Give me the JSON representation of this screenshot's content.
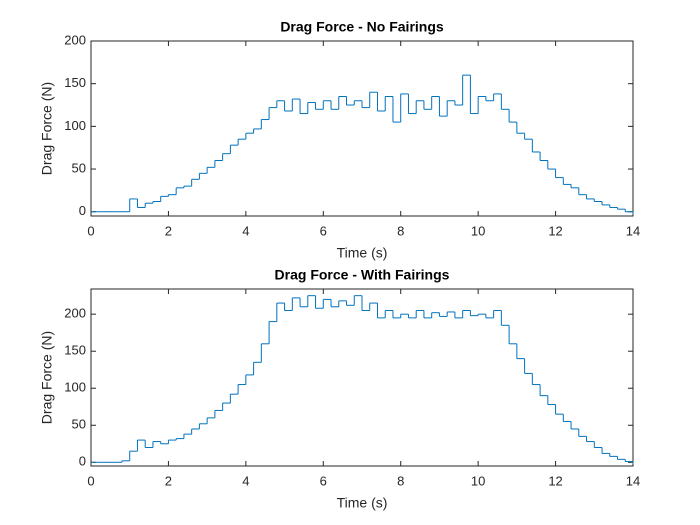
{
  "chart_data": [
    {
      "type": "stairs",
      "title": "Drag Force - No Fairings",
      "xlabel": "Time (s)",
      "ylabel": "Drag Force (N)",
      "color": "#0072BD",
      "x": [
        0,
        0.2,
        0.4,
        0.6,
        0.8,
        1,
        1.2,
        1.4,
        1.6,
        1.8,
        2,
        2.2,
        2.4,
        2.6,
        2.8,
        3,
        3.2,
        3.4,
        3.6,
        3.8,
        4,
        4.2,
        4.4,
        4.6,
        4.8,
        5,
        5.2,
        5.4,
        5.6,
        5.8,
        6,
        6.2,
        6.4,
        6.6,
        6.8,
        7,
        7.2,
        7.4,
        7.6,
        7.8,
        8,
        8.2,
        8.4,
        8.6,
        8.8,
        9,
        9.2,
        9.4,
        9.6,
        9.8,
        10,
        10.2,
        10.4,
        10.6,
        10.8,
        11,
        11.2,
        11.4,
        11.6,
        11.8,
        12,
        12.2,
        12.4,
        12.6,
        12.8,
        13,
        13.2,
        13.4,
        13.6,
        13.8,
        14
      ],
      "values": [
        0,
        0,
        0,
        0,
        0,
        15,
        5,
        10,
        12,
        18,
        20,
        28,
        30,
        38,
        45,
        52,
        60,
        68,
        78,
        85,
        92,
        97,
        108,
        122,
        130,
        118,
        132,
        115,
        128,
        120,
        130,
        120,
        135,
        125,
        130,
        122,
        140,
        118,
        135,
        105,
        138,
        115,
        130,
        120,
        135,
        112,
        130,
        125,
        160,
        115,
        135,
        130,
        138,
        120,
        105,
        92,
        85,
        70,
        60,
        50,
        40,
        32,
        28,
        20,
        15,
        12,
        8,
        5,
        3,
        0,
        -3
      ],
      "xlim": [
        0,
        14
      ],
      "xticks": [
        0,
        2,
        4,
        6,
        8,
        10,
        12,
        14
      ],
      "ylim": [
        -5,
        200
      ],
      "yticks": [
        0,
        50,
        100,
        150,
        200
      ]
    },
    {
      "type": "stairs",
      "title": "Drag Force - With Fairings",
      "xlabel": "Time (s)",
      "ylabel": "Drag Force (N)",
      "color": "#0072BD",
      "x": [
        0,
        0.2,
        0.4,
        0.6,
        0.8,
        1,
        1.2,
        1.4,
        1.6,
        1.8,
        2,
        2.2,
        2.4,
        2.6,
        2.8,
        3,
        3.2,
        3.4,
        3.6,
        3.8,
        4,
        4.2,
        4.4,
        4.6,
        4.8,
        5,
        5.2,
        5.4,
        5.6,
        5.8,
        6,
        6.2,
        6.4,
        6.6,
        6.8,
        7,
        7.2,
        7.4,
        7.6,
        7.8,
        8,
        8.2,
        8.4,
        8.6,
        8.8,
        9,
        9.2,
        9.4,
        9.6,
        9.8,
        10,
        10.2,
        10.4,
        10.6,
        10.8,
        11,
        11.2,
        11.4,
        11.6,
        11.8,
        12,
        12.2,
        12.4,
        12.6,
        12.8,
        13,
        13.2,
        13.4,
        13.6,
        13.8,
        14
      ],
      "values": [
        0,
        0,
        0,
        0,
        2,
        15,
        30,
        20,
        28,
        25,
        30,
        32,
        38,
        45,
        52,
        60,
        70,
        80,
        92,
        105,
        118,
        135,
        160,
        190,
        215,
        205,
        222,
        210,
        225,
        208,
        220,
        210,
        218,
        212,
        225,
        205,
        215,
        195,
        205,
        195,
        200,
        195,
        205,
        195,
        202,
        197,
        203,
        195,
        205,
        198,
        200,
        195,
        205,
        185,
        160,
        140,
        120,
        105,
        90,
        78,
        65,
        55,
        45,
        35,
        28,
        20,
        12,
        8,
        4,
        1,
        -2
      ],
      "xlim": [
        0,
        14
      ],
      "xticks": [
        0,
        2,
        4,
        6,
        8,
        10,
        12,
        14
      ],
      "ylim": [
        -5,
        234
      ],
      "yticks": [
        0,
        50,
        100,
        150,
        200
      ]
    }
  ]
}
